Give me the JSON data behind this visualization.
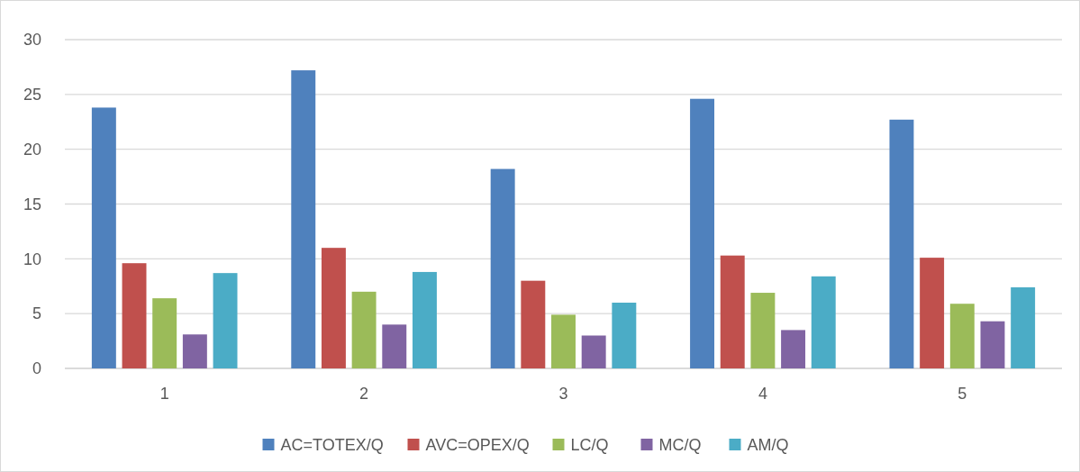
{
  "chart_data": {
    "type": "bar",
    "categories": [
      "1",
      "2",
      "3",
      "4",
      "5"
    ],
    "series": [
      {
        "name": "AC=TOTEX/Q",
        "color": "#4f81bd",
        "values": [
          23.8,
          27.2,
          18.2,
          24.6,
          22.7
        ]
      },
      {
        "name": "AVC=OPEX/Q",
        "color": "#c0504d",
        "values": [
          9.6,
          11.0,
          8.0,
          10.3,
          10.1
        ]
      },
      {
        "name": "LC/Q",
        "color": "#9bbb59",
        "values": [
          6.4,
          7.0,
          4.9,
          6.9,
          5.9
        ]
      },
      {
        "name": "MC/Q",
        "color": "#8064a2",
        "values": [
          3.1,
          4.0,
          3.0,
          3.5,
          4.3
        ]
      },
      {
        "name": "AM/Q",
        "color": "#4bacc6",
        "values": [
          8.7,
          8.8,
          6.0,
          8.4,
          7.4
        ]
      }
    ],
    "ylim": [
      0,
      30
    ],
    "yticks": [
      0,
      5,
      10,
      15,
      20,
      25,
      30
    ],
    "grid": "y",
    "legend": "bottom"
  }
}
